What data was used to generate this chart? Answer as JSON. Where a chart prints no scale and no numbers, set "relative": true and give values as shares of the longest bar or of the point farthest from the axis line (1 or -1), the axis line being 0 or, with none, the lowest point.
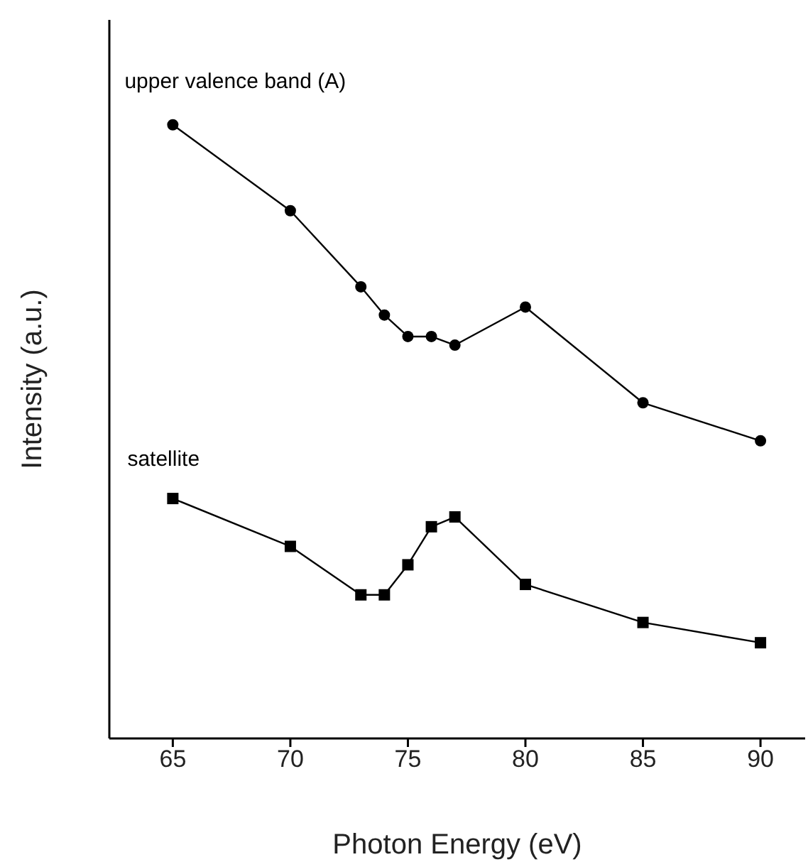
{
  "chart_data": {
    "type": "line",
    "xlabel": "Photon Energy (eV)",
    "ylabel": "Intensity (a.u.)",
    "relative": true,
    "line_style": "solid",
    "tick_labels": "x",
    "xlim": [
      62.3,
      91.9
    ],
    "xticks": [
      65,
      70,
      75,
      80,
      85,
      90
    ],
    "x": [
      65,
      70,
      73,
      74,
      75,
      76,
      77,
      80,
      85,
      90
    ],
    "series": [
      {
        "name": "upper valence band (A)",
        "color": "#000000",
        "marker": "circle",
        "values": [
          1,
          0.86,
          0.736,
          0.69,
          0.655,
          0.655,
          0.641,
          0.703,
          0.547,
          0.485
        ]
      },
      {
        "name": "satellite",
        "color": "#000000",
        "marker": "square",
        "values": [
          0.391,
          0.313,
          0.234,
          0.234,
          0.283,
          0.345,
          0.361,
          0.251,
          0.189,
          0.156
        ]
      }
    ]
  }
}
